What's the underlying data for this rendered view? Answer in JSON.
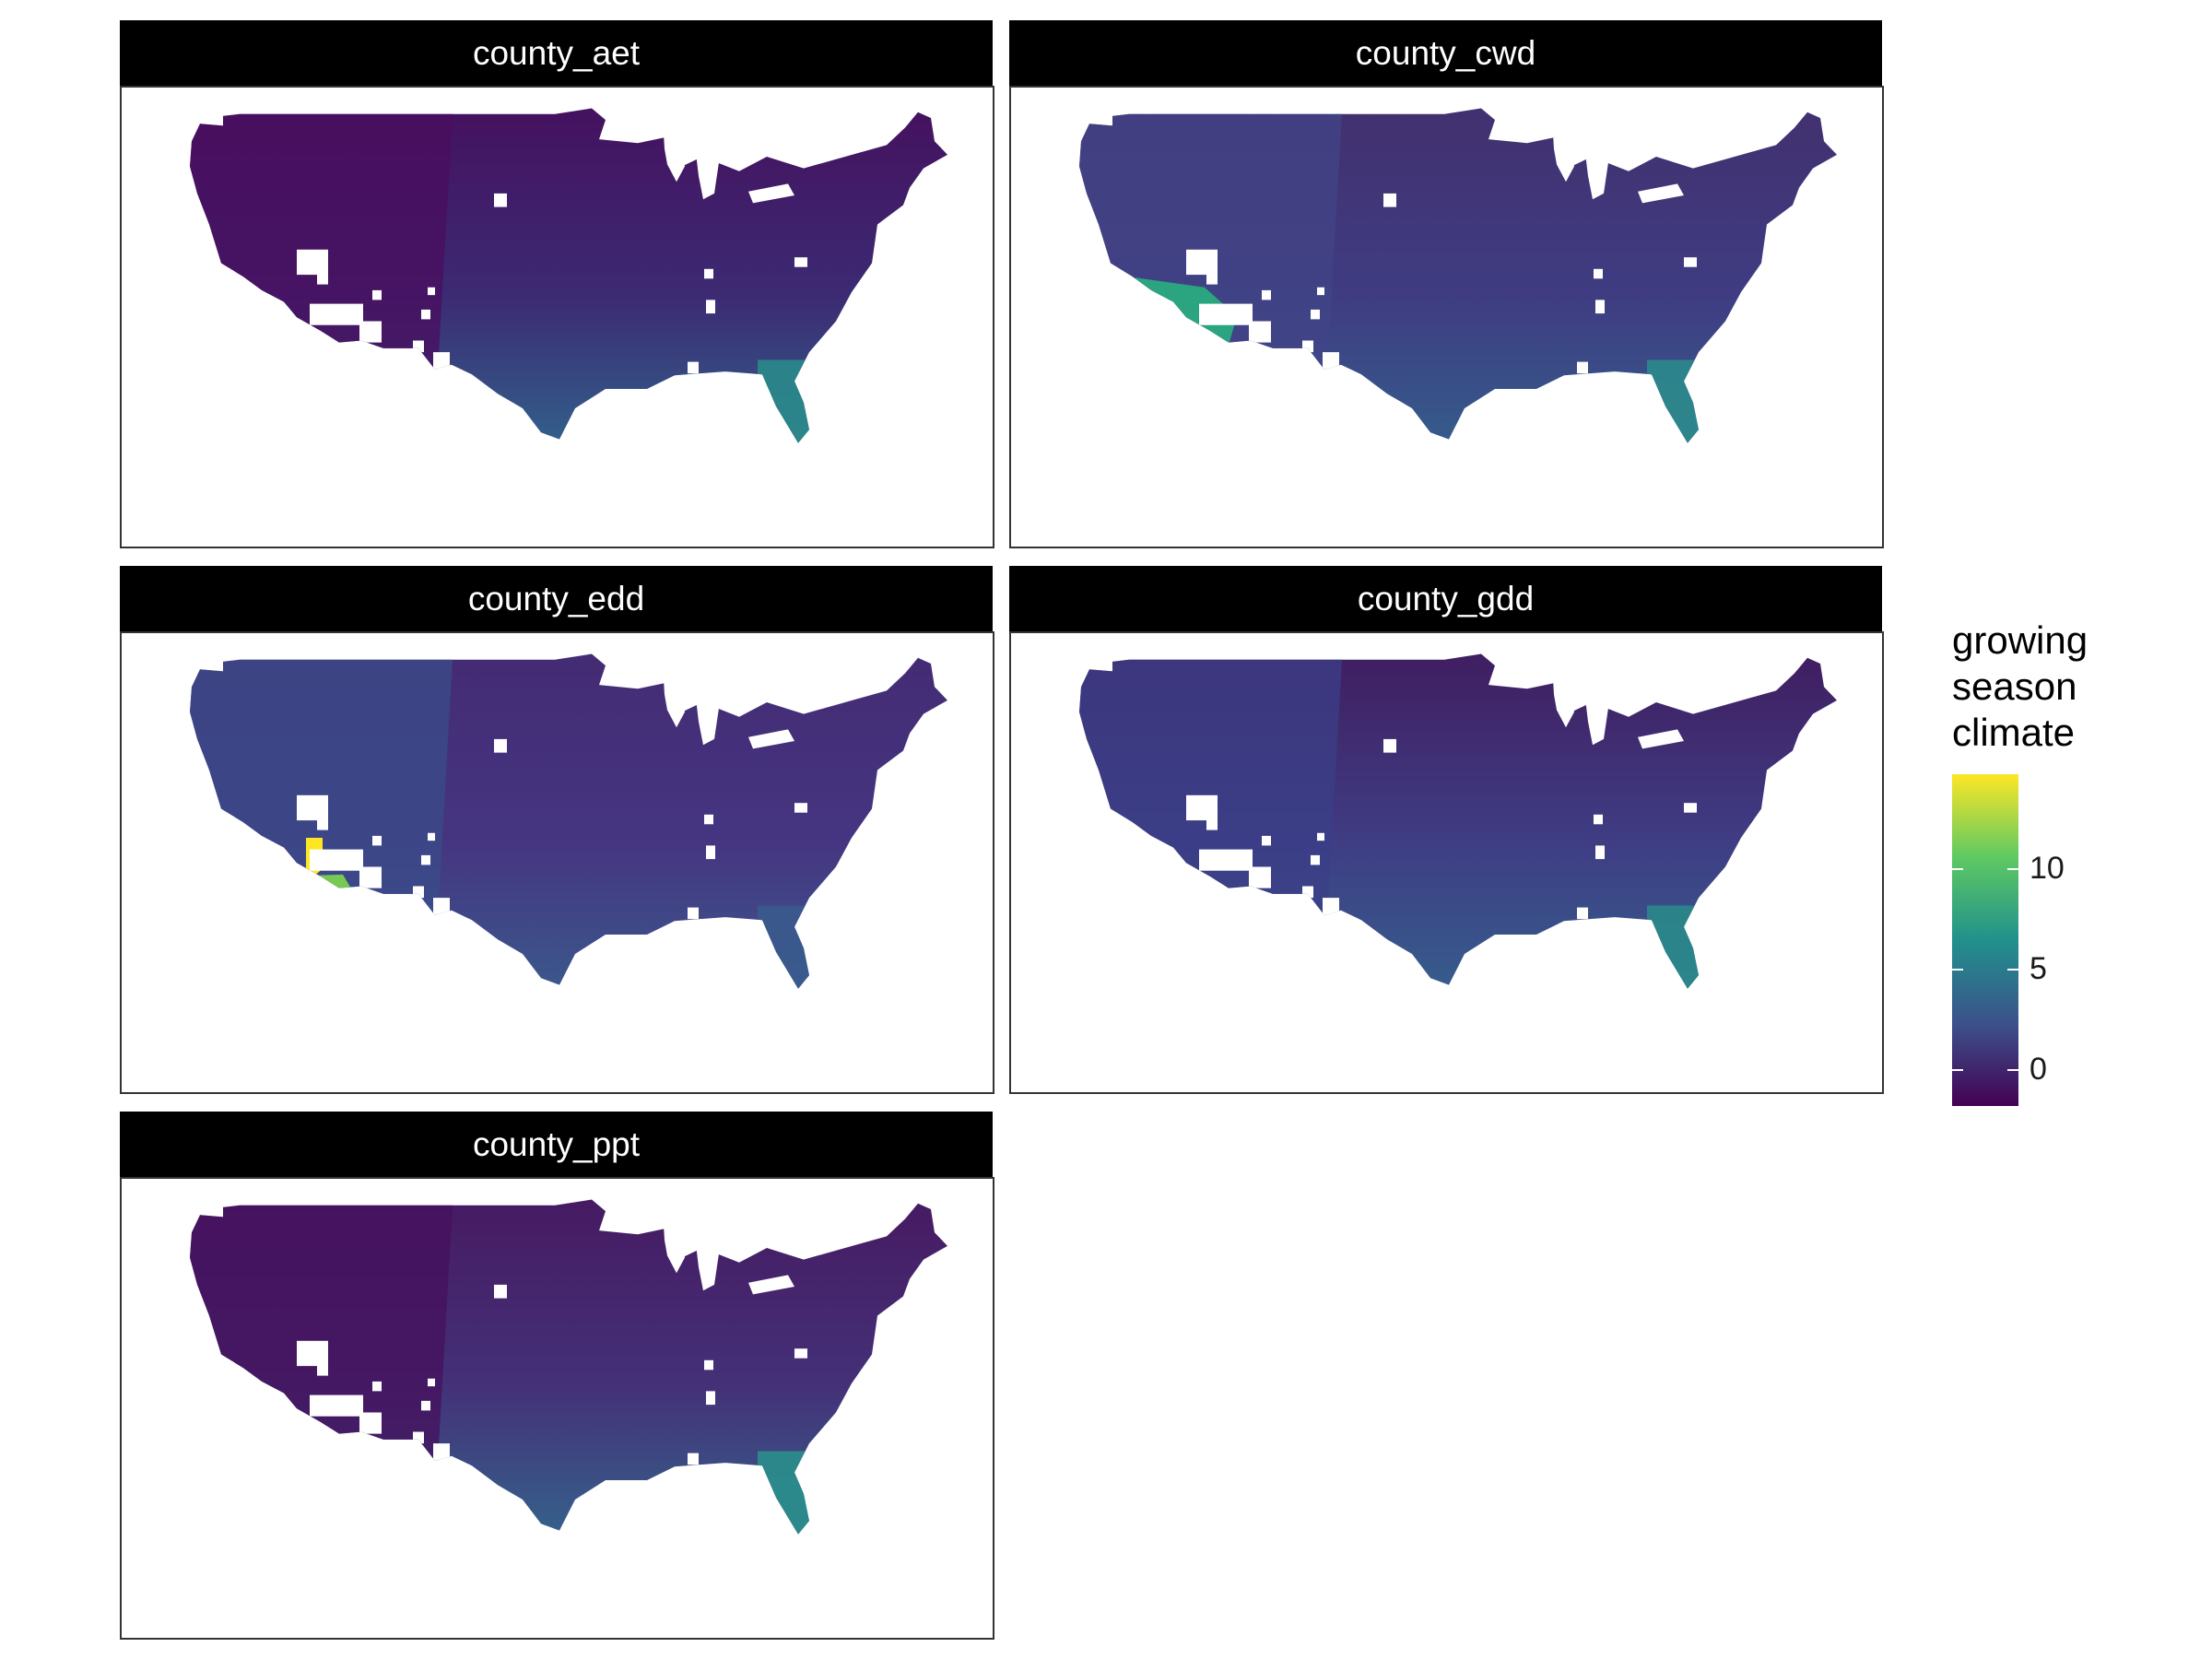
{
  "panels": [
    {
      "label": "county_aet",
      "palette": {
        "base": "#3c2a73",
        "north": "#45105e",
        "west": "#4a0d5f",
        "south": "#31648c",
        "florida": "#2a8a8a"
      }
    },
    {
      "label": "county_cwd",
      "palette": {
        "base": "#3f3c82",
        "north": "#42306e",
        "west": "#414487",
        "south": "#345e8c",
        "florida": "#2c8a8c",
        "hotspot": "#29af7f"
      }
    },
    {
      "label": "county_edd",
      "palette": {
        "base": "#453581",
        "north": "#442b73",
        "west": "#3a4c8a",
        "south": "#3a5a8c",
        "florida": "#3a5a8c",
        "hotspot": "#7ad151",
        "peak": "#fde725"
      }
    },
    {
      "label": "county_gdd",
      "palette": {
        "base": "#3f3d84",
        "north": "#401c5f",
        "west": "#3b3f87",
        "south": "#355f8d",
        "florida": "#2a8a8a"
      }
    },
    {
      "label": "county_ppt",
      "palette": {
        "base": "#443178",
        "north": "#461961",
        "west": "#45105e",
        "south": "#34658d",
        "florida": "#2a8e8c"
      }
    }
  ],
  "legend": {
    "title_lines": [
      "growing",
      "season",
      "climate"
    ],
    "ticks": [
      "10",
      "5",
      "0"
    ],
    "tick_values": [
      10,
      5,
      0
    ],
    "range": [
      -1.8,
      14.7
    ],
    "colors": [
      "#440154",
      "#3b528b",
      "#21918c",
      "#5ec962",
      "#fde725"
    ]
  }
}
